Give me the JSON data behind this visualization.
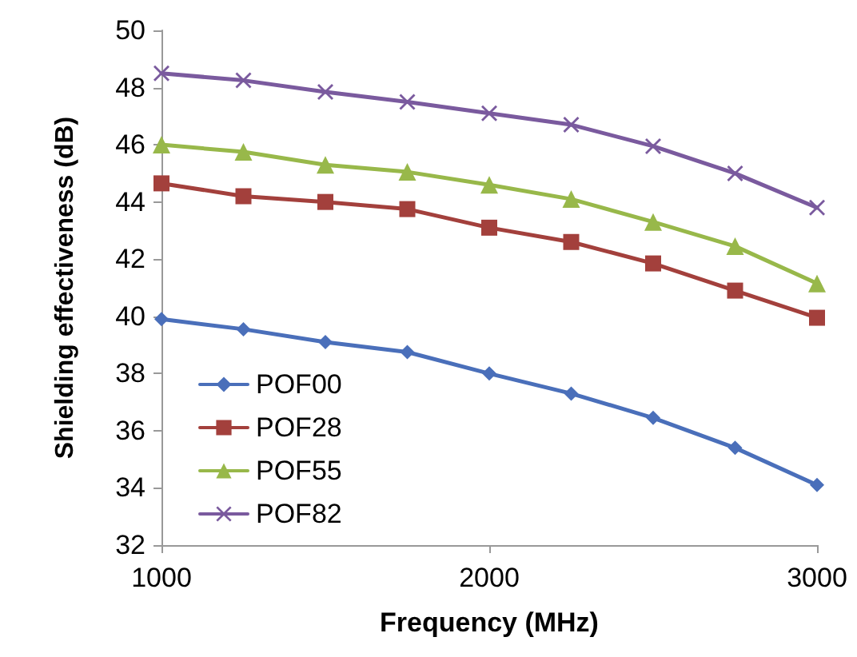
{
  "chart_data": {
    "type": "line",
    "xlabel": "Frequency (MHz)",
    "ylabel": "Shielding effectiveness (dB)",
    "x": [
      1000,
      1250,
      1500,
      1750,
      2000,
      2250,
      2500,
      2750,
      3000
    ],
    "series": [
      {
        "name": "POF00",
        "color": "#4a6fba",
        "marker": "diamond",
        "values": [
          39.9,
          39.55,
          39.1,
          38.75,
          38.0,
          37.3,
          36.45,
          35.4,
          34.1
        ]
      },
      {
        "name": "POF28",
        "color": "#a3403c",
        "marker": "square",
        "values": [
          44.65,
          44.2,
          44.0,
          43.75,
          43.1,
          42.6,
          41.85,
          40.9,
          39.95
        ]
      },
      {
        "name": "POF55",
        "color": "#98b84a",
        "marker": "triangle",
        "values": [
          46.0,
          45.75,
          45.3,
          45.05,
          44.6,
          44.1,
          43.3,
          42.45,
          41.15
        ]
      },
      {
        "name": "POF82",
        "color": "#7a5a9e",
        "marker": "cross",
        "values": [
          48.5,
          48.25,
          47.85,
          47.5,
          47.1,
          46.7,
          45.95,
          45.0,
          43.8
        ]
      }
    ],
    "xlim": [
      1000,
      3000
    ],
    "xticks": [
      1000,
      2000,
      3000
    ],
    "ylim": [
      32,
      50
    ],
    "yticks": [
      32,
      34,
      36,
      38,
      40,
      42,
      44,
      46,
      48,
      50
    ],
    "grid": false,
    "legend": "bottom left",
    "line_style": "solid"
  }
}
